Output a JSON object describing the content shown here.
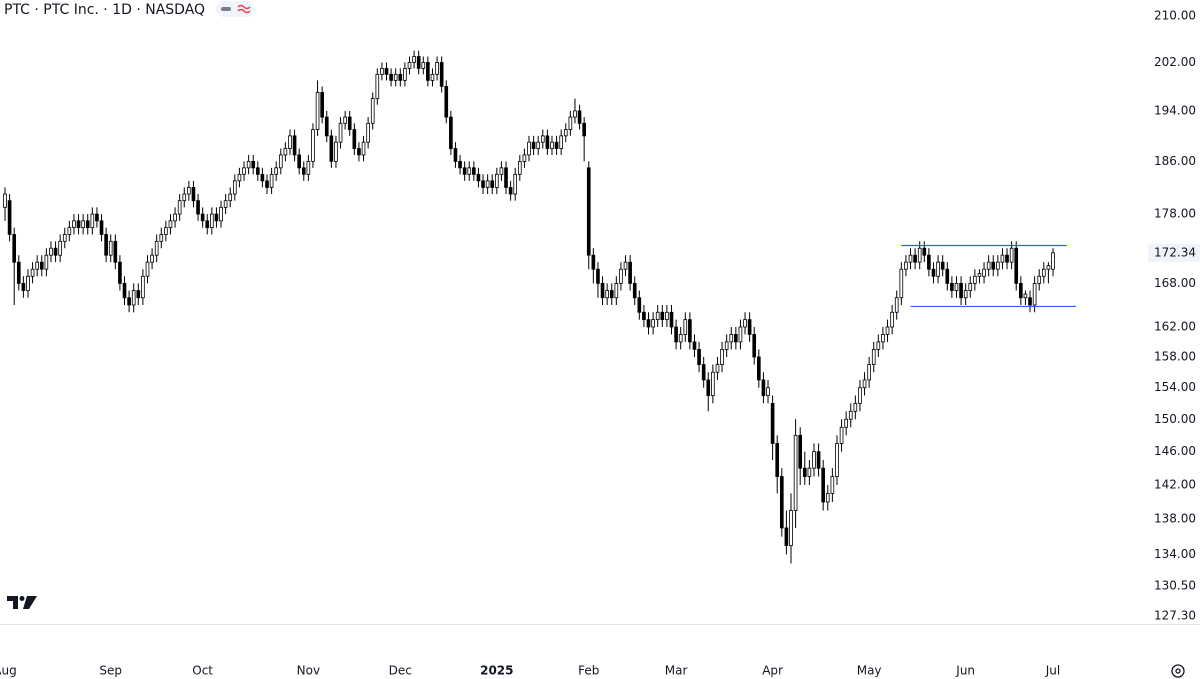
{
  "chart_data": {
    "type": "candlestick",
    "title": "PTC · PTC Inc. · 1D · NASDAQ",
    "log_scale": true,
    "up_color": "#ffffff",
    "down_color": "#000000",
    "ylim": [
      126.45,
      212.8
    ],
    "yticks": [
      {
        "value": 210,
        "label": "210.00"
      },
      {
        "value": 202,
        "label": "202.00"
      },
      {
        "value": 194,
        "label": "194.00"
      },
      {
        "value": 186,
        "label": "186.00"
      },
      {
        "value": 178,
        "label": "178.00"
      },
      {
        "value": 168,
        "label": "168.00"
      },
      {
        "value": 162,
        "label": "162.00"
      },
      {
        "value": 158,
        "label": "158.00"
      },
      {
        "value": 154,
        "label": "154.00"
      },
      {
        "value": 150,
        "label": "150.00"
      },
      {
        "value": 146,
        "label": "146.00"
      },
      {
        "value": 142,
        "label": "142.00"
      },
      {
        "value": 138,
        "label": "138.00"
      },
      {
        "value": 134,
        "label": "134.00"
      },
      {
        "value": 130.5,
        "label": "130.50"
      },
      {
        "value": 127.3,
        "label": "127.30"
      }
    ],
    "last_price": {
      "value": 172.34,
      "label": "172.34"
    },
    "hlines": [
      {
        "value": 173.4,
        "color": "#2962ff",
        "start": 195,
        "end": 231
      },
      {
        "value": 164.8,
        "color": "#2962ff",
        "start": 197,
        "end": 233
      }
    ],
    "categories": [
      "Aug",
      null,
      null,
      null,
      null,
      null,
      null,
      null,
      null,
      null,
      null,
      null,
      null,
      null,
      null,
      null,
      null,
      null,
      null,
      null,
      null,
      null,
      null,
      "Sep",
      null,
      null,
      null,
      null,
      null,
      null,
      null,
      null,
      null,
      null,
      null,
      null,
      null,
      null,
      null,
      null,
      null,
      null,
      null,
      "Oct",
      null,
      null,
      null,
      null,
      null,
      null,
      null,
      null,
      null,
      null,
      null,
      null,
      null,
      null,
      null,
      null,
      null,
      null,
      null,
      null,
      null,
      null,
      "Nov",
      null,
      null,
      null,
      null,
      null,
      null,
      null,
      null,
      null,
      null,
      null,
      null,
      null,
      null,
      null,
      null,
      null,
      null,
      null,
      "Dec",
      null,
      null,
      null,
      null,
      null,
      null,
      null,
      null,
      null,
      null,
      null,
      null,
      null,
      null,
      null,
      null,
      null,
      null,
      null,
      null,
      "2025",
      null,
      null,
      null,
      null,
      null,
      null,
      null,
      null,
      null,
      null,
      null,
      null,
      null,
      null,
      null,
      null,
      null,
      null,
      null,
      "Feb",
      null,
      null,
      null,
      null,
      null,
      null,
      null,
      null,
      null,
      null,
      null,
      null,
      null,
      null,
      null,
      null,
      null,
      null,
      "Mar",
      null,
      null,
      null,
      null,
      null,
      null,
      null,
      null,
      null,
      null,
      null,
      null,
      null,
      null,
      null,
      null,
      null,
      null,
      null,
      null,
      "Apr",
      null,
      null,
      null,
      null,
      null,
      null,
      null,
      null,
      null,
      null,
      null,
      null,
      null,
      null,
      null,
      null,
      null,
      null,
      null,
      null,
      "May",
      null,
      null,
      null,
      null,
      null,
      null,
      null,
      null,
      null,
      null,
      null,
      null,
      null,
      null,
      null,
      null,
      null,
      null,
      null,
      null,
      "Jun",
      null,
      null,
      null,
      null,
      null,
      null,
      null,
      null,
      null,
      null,
      null,
      null,
      null,
      null,
      null,
      null,
      null,
      null,
      "Jul"
    ],
    "ohlc": [
      [
        179,
        182,
        177,
        181
      ],
      [
        180,
        181,
        174,
        175
      ],
      [
        175,
        176,
        165,
        171
      ],
      [
        171,
        172,
        167,
        168
      ],
      [
        168,
        169,
        166,
        167
      ],
      [
        167,
        170,
        166,
        169
      ],
      [
        169,
        171,
        168,
        170
      ],
      [
        170,
        172,
        169,
        171
      ],
      [
        171,
        172,
        169,
        170
      ],
      [
        170,
        173,
        169,
        172
      ],
      [
        172,
        174,
        171,
        173
      ],
      [
        173,
        174,
        171,
        172
      ],
      [
        172,
        175,
        171,
        174
      ],
      [
        174,
        176,
        173,
        175
      ],
      [
        175,
        177,
        174,
        176
      ],
      [
        176,
        178,
        175,
        177
      ],
      [
        177,
        178,
        175,
        176
      ],
      [
        176,
        178,
        175,
        177
      ],
      [
        177,
        178,
        175,
        176
      ],
      [
        176,
        179,
        175,
        178
      ],
      [
        178,
        179,
        176,
        177
      ],
      [
        177,
        178,
        174,
        175
      ],
      [
        175,
        176,
        171,
        172
      ],
      [
        172,
        175,
        171,
        174
      ],
      [
        174,
        175,
        170,
        171
      ],
      [
        171,
        172,
        167,
        168
      ],
      [
        168,
        169,
        165,
        166
      ],
      [
        166,
        167,
        164,
        165
      ],
      [
        165,
        168,
        164,
        167
      ],
      [
        167,
        168,
        165,
        166
      ],
      [
        166,
        170,
        165,
        169
      ],
      [
        169,
        172,
        168,
        171
      ],
      [
        171,
        173,
        170,
        172
      ],
      [
        172,
        175,
        171,
        174
      ],
      [
        174,
        176,
        173,
        175
      ],
      [
        175,
        177,
        174,
        176
      ],
      [
        176,
        178,
        175,
        177
      ],
      [
        177,
        179,
        176,
        178
      ],
      [
        178,
        181,
        177,
        180
      ],
      [
        180,
        182,
        179,
        181
      ],
      [
        181,
        183,
        180,
        182
      ],
      [
        182,
        183,
        179,
        180
      ],
      [
        180,
        181,
        177,
        178
      ],
      [
        178,
        179,
        176,
        177
      ],
      [
        177,
        178,
        175,
        176
      ],
      [
        176,
        179,
        175,
        178
      ],
      [
        178,
        179,
        176,
        177
      ],
      [
        177,
        180,
        176,
        179
      ],
      [
        179,
        181,
        178,
        180
      ],
      [
        180,
        182,
        179,
        181
      ],
      [
        181,
        184,
        180,
        183
      ],
      [
        183,
        185,
        182,
        184
      ],
      [
        184,
        186,
        183,
        185
      ],
      [
        185,
        187,
        184,
        186
      ],
      [
        186,
        187,
        184,
        185
      ],
      [
        185,
        186,
        183,
        184
      ],
      [
        184,
        185,
        182,
        183
      ],
      [
        183,
        184,
        181,
        182
      ],
      [
        182,
        185,
        181,
        184
      ],
      [
        184,
        186,
        183,
        185
      ],
      [
        185,
        188,
        184,
        187
      ],
      [
        187,
        189,
        186,
        188
      ],
      [
        188,
        191,
        187,
        190
      ],
      [
        190,
        191,
        186,
        187
      ],
      [
        187,
        188,
        184,
        185
      ],
      [
        185,
        186,
        183,
        184
      ],
      [
        184,
        187,
        183,
        186
      ],
      [
        186,
        192,
        185,
        191
      ],
      [
        191,
        199,
        190,
        197
      ],
      [
        197,
        198,
        192,
        193
      ],
      [
        193,
        194,
        189,
        190
      ],
      [
        190,
        191,
        185,
        186
      ],
      [
        186,
        190,
        185,
        189
      ],
      [
        189,
        193,
        188,
        192
      ],
      [
        192,
        194,
        191,
        193
      ],
      [
        193,
        194,
        190,
        191
      ],
      [
        191,
        192,
        187,
        188
      ],
      [
        188,
        189,
        186,
        187
      ],
      [
        187,
        190,
        186,
        189
      ],
      [
        189,
        193,
        188,
        192
      ],
      [
        192,
        197,
        191,
        196
      ],
      [
        196,
        201,
        195,
        200
      ],
      [
        200,
        202,
        199,
        201
      ],
      [
        201,
        202,
        199,
        200
      ],
      [
        200,
        201,
        198,
        199
      ],
      [
        199,
        201,
        198,
        200
      ],
      [
        200,
        201,
        198,
        199
      ],
      [
        199,
        202,
        198,
        201
      ],
      [
        201,
        203,
        200,
        202
      ],
      [
        202,
        204,
        201,
        203
      ],
      [
        203,
        204,
        200,
        201
      ],
      [
        201,
        203,
        200,
        202
      ],
      [
        202,
        203,
        198,
        199
      ],
      [
        199,
        201,
        198,
        200
      ],
      [
        200,
        203,
        199,
        202
      ],
      [
        202,
        203,
        197,
        198
      ],
      [
        198,
        199,
        192,
        193
      ],
      [
        193,
        194,
        187,
        188
      ],
      [
        188,
        189,
        185,
        186
      ],
      [
        186,
        187,
        184,
        185
      ],
      [
        185,
        186,
        183,
        184
      ],
      [
        184,
        186,
        183,
        185
      ],
      [
        185,
        186,
        183,
        184
      ],
      [
        184,
        185,
        182,
        183
      ],
      [
        183,
        184,
        181,
        182
      ],
      [
        182,
        184,
        181,
        183
      ],
      [
        183,
        184,
        181,
        182
      ],
      [
        182,
        185,
        181,
        184
      ],
      [
        184,
        186,
        183,
        185
      ],
      [
        185,
        186,
        181,
        182
      ],
      [
        182,
        183,
        180,
        181
      ],
      [
        181,
        185,
        180,
        184
      ],
      [
        184,
        187,
        183,
        186
      ],
      [
        186,
        188,
        185,
        187
      ],
      [
        187,
        190,
        186,
        189
      ],
      [
        189,
        190,
        187,
        188
      ],
      [
        188,
        190,
        187,
        189
      ],
      [
        189,
        191,
        188,
        190
      ],
      [
        190,
        191,
        187,
        188
      ],
      [
        188,
        190,
        187,
        189
      ],
      [
        189,
        190,
        187,
        188
      ],
      [
        188,
        191,
        187,
        190
      ],
      [
        190,
        192,
        189,
        191
      ],
      [
        191,
        194,
        190,
        193
      ],
      [
        193,
        196,
        192,
        194
      ],
      [
        194,
        195,
        191,
        192
      ],
      [
        192,
        193,
        186,
        190
      ],
      [
        185,
        186,
        170,
        172
      ],
      [
        172,
        173,
        168,
        170
      ],
      [
        170,
        171,
        166,
        168
      ],
      [
        168,
        169,
        165,
        166
      ],
      [
        166,
        168,
        165,
        167
      ],
      [
        167,
        168,
        165,
        166
      ],
      [
        166,
        169,
        165,
        168
      ],
      [
        168,
        171,
        167,
        170
      ],
      [
        170,
        172,
        169,
        171
      ],
      [
        171,
        172,
        167,
        168
      ],
      [
        168,
        169,
        165,
        166
      ],
      [
        166,
        167,
        163,
        164
      ],
      [
        164,
        165,
        162,
        163
      ],
      [
        163,
        164,
        161,
        162
      ],
      [
        162,
        164,
        161,
        163
      ],
      [
        163,
        165,
        162,
        164
      ],
      [
        164,
        165,
        162,
        163
      ],
      [
        163,
        165,
        162,
        164
      ],
      [
        164,
        165,
        161,
        162
      ],
      [
        162,
        163,
        159,
        160
      ],
      [
        160,
        162,
        159,
        161
      ],
      [
        161,
        164,
        160,
        163
      ],
      [
        163,
        164,
        159,
        160
      ],
      [
        160,
        161,
        158,
        159
      ],
      [
        159,
        160,
        156,
        157
      ],
      [
        157,
        158,
        154,
        155
      ],
      [
        155,
        156,
        151,
        153
      ],
      [
        153,
        157,
        152,
        156
      ],
      [
        156,
        158,
        155,
        157
      ],
      [
        157,
        160,
        156,
        159
      ],
      [
        159,
        161,
        158,
        160
      ],
      [
        160,
        162,
        159,
        161
      ],
      [
        161,
        162,
        159,
        160
      ],
      [
        160,
        163,
        159,
        162
      ],
      [
        162,
        164,
        161,
        163
      ],
      [
        163,
        164,
        160,
        161
      ],
      [
        161,
        162,
        157,
        158
      ],
      [
        158,
        159,
        154,
        155
      ],
      [
        155,
        156,
        152,
        153
      ],
      [
        153,
        155,
        152,
        154
      ],
      [
        152,
        153,
        145,
        147
      ],
      [
        147,
        148,
        141,
        143
      ],
      [
        143,
        144,
        136,
        137
      ],
      [
        137,
        139,
        134,
        135
      ],
      [
        135,
        141,
        133,
        139
      ],
      [
        139,
        150,
        137,
        148
      ],
      [
        148,
        149,
        142,
        144
      ],
      [
        144,
        146,
        142,
        143
      ],
      [
        143,
        145,
        142,
        144
      ],
      [
        144,
        147,
        143,
        146
      ],
      [
        146,
        147,
        143,
        144
      ],
      [
        144,
        145,
        139,
        140
      ],
      [
        140,
        142,
        139,
        141
      ],
      [
        141,
        144,
        140,
        143
      ],
      [
        143,
        148,
        142,
        147
      ],
      [
        147,
        150,
        146,
        149
      ],
      [
        149,
        151,
        148,
        150
      ],
      [
        150,
        152,
        149,
        151
      ],
      [
        151,
        153,
        150,
        152
      ],
      [
        152,
        155,
        151,
        154
      ],
      [
        154,
        156,
        153,
        155
      ],
      [
        155,
        158,
        154,
        157
      ],
      [
        157,
        160,
        156,
        159
      ],
      [
        159,
        161,
        158,
        160
      ],
      [
        160,
        162,
        159,
        161
      ],
      [
        161,
        163,
        160,
        162
      ],
      [
        162,
        165,
        161,
        164
      ],
      [
        164,
        167,
        163,
        166
      ],
      [
        166,
        171,
        165,
        170
      ],
      [
        170,
        172,
        169,
        171
      ],
      [
        171,
        173,
        170,
        172
      ],
      [
        172,
        173,
        170,
        171
      ],
      [
        171,
        174,
        170,
        173
      ],
      [
        173,
        174,
        171,
        172
      ],
      [
        172,
        173,
        169,
        170
      ],
      [
        170,
        171,
        168,
        169
      ],
      [
        169,
        172,
        168,
        171
      ],
      [
        171,
        172,
        169,
        170
      ],
      [
        170,
        171,
        167,
        168
      ],
      [
        168,
        169,
        166,
        167
      ],
      [
        167,
        169,
        166,
        168
      ],
      [
        168,
        169,
        165,
        166
      ],
      [
        166,
        168,
        165,
        167
      ],
      [
        167,
        169,
        166,
        168
      ],
      [
        168,
        170,
        167,
        169
      ],
      [
        169,
        170,
        168,
        169.4
      ],
      [
        169,
        171,
        168,
        170
      ],
      [
        170,
        172,
        169,
        171
      ],
      [
        171,
        172,
        169,
        170
      ],
      [
        170,
        172,
        169,
        171
      ],
      [
        171,
        173,
        170,
        172
      ],
      [
        172,
        173,
        170,
        171
      ],
      [
        171,
        174,
        170,
        173
      ],
      [
        173,
        174,
        167,
        168
      ],
      [
        168,
        169,
        165,
        166
      ],
      [
        166,
        167,
        165,
        166.5
      ],
      [
        166,
        167,
        164,
        165
      ],
      [
        165,
        169,
        164,
        168
      ],
      [
        168,
        170,
        167,
        169
      ],
      [
        169,
        171,
        168,
        170
      ],
      [
        170,
        171,
        168,
        170.5
      ],
      [
        170,
        173,
        169,
        172.34
      ]
    ]
  }
}
